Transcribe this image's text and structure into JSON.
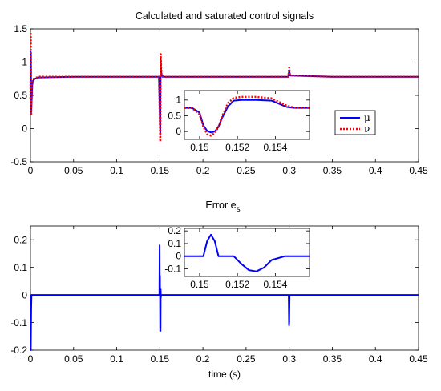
{
  "colors": {
    "mu": "#0000ff",
    "nu": "#ff0000",
    "error": "#0000ff",
    "axes": "#000000"
  },
  "chart_data": [
    {
      "type": "line",
      "title": "Calculated and saturated control signals",
      "xlabel": "",
      "ylabel": "",
      "xlim": [
        0,
        0.45
      ],
      "ylim": [
        -0.5,
        1.5
      ],
      "x_ticks": [
        0,
        0.05,
        0.1,
        0.15,
        0.2,
        0.25,
        0.3,
        0.35,
        0.4,
        0.45
      ],
      "x_tick_labels": [
        "0",
        "0.05",
        "0.1",
        "0.15",
        "0.2",
        "0.25",
        "0.3",
        "0.35",
        "0.4",
        "0.45"
      ],
      "y_ticks": [
        -0.5,
        0,
        0.5,
        1,
        1.5
      ],
      "y_tick_labels": [
        "-0.5",
        "0",
        "0.5",
        "1",
        "1.5"
      ],
      "legend": {
        "placement": "right, below inset",
        "entries": [
          "μ",
          "ν"
        ]
      },
      "series": [
        {
          "name": "μ",
          "color": "#0000ff",
          "style": "solid",
          "x": [
            0,
            0.0005,
            0.0008,
            0.0012,
            0.002,
            0.003,
            0.005,
            0.01,
            0.05,
            0.1,
            0.149,
            0.1505,
            0.1507,
            0.151,
            0.1515,
            0.152,
            0.153,
            0.155,
            0.2,
            0.25,
            0.299,
            0.3,
            0.301,
            0.35,
            0.4,
            0.45
          ],
          "y": [
            0.25,
            1.15,
            0.25,
            0.35,
            0.65,
            0.72,
            0.75,
            0.77,
            0.78,
            0.78,
            0.78,
            -0.1,
            0.3,
            1.05,
            0.9,
            0.8,
            0.78,
            0.78,
            0.78,
            0.78,
            0.78,
            0.88,
            0.8,
            0.78,
            0.78,
            0.78
          ]
        },
        {
          "name": "ν",
          "color": "#ff0000",
          "style": "dotted",
          "x": [
            0,
            0.0004,
            0.0008,
            0.0012,
            0.002,
            0.003,
            0.005,
            0.01,
            0.05,
            0.1,
            0.149,
            0.1505,
            0.1507,
            0.151,
            0.1515,
            0.152,
            0.153,
            0.155,
            0.2,
            0.25,
            0.299,
            0.3,
            0.301,
            0.35,
            0.4,
            0.45
          ],
          "y": [
            0.45,
            1.45,
            0.2,
            0.4,
            0.68,
            0.74,
            0.76,
            0.78,
            0.78,
            0.78,
            0.78,
            -0.2,
            0.3,
            1.12,
            0.95,
            0.82,
            0.79,
            0.78,
            0.78,
            0.78,
            0.78,
            0.92,
            0.8,
            0.78,
            0.78,
            0.78
          ]
        }
      ],
      "inset": {
        "xlim": [
          0.1492,
          0.1558
        ],
        "ylim": [
          -0.25,
          1.3
        ],
        "x_ticks": [
          0.15,
          0.152,
          0.154
        ],
        "x_tick_labels": [
          "0.15",
          "0.152",
          "0.154"
        ],
        "y_ticks": [
          0,
          0.5,
          1
        ],
        "y_tick_labels": [
          "0",
          "0.5",
          "1"
        ],
        "series": [
          {
            "name": "μ",
            "x": [
              0.1492,
              0.1496,
              0.15,
              0.1502,
              0.1504,
              0.1506,
              0.1508,
              0.151,
              0.1512,
              0.1515,
              0.1518,
              0.1522,
              0.153,
              0.1538,
              0.1546,
              0.155,
              0.1558
            ],
            "y": [
              0.75,
              0.75,
              0.6,
              0.2,
              0.02,
              -0.03,
              0.0,
              0.15,
              0.45,
              0.8,
              0.98,
              1.0,
              1.0,
              0.98,
              0.78,
              0.75,
              0.75
            ]
          },
          {
            "name": "ν",
            "x": [
              0.1492,
              0.1496,
              0.15,
              0.1502,
              0.1504,
              0.1506,
              0.1508,
              0.151,
              0.1512,
              0.1515,
              0.1518,
              0.1522,
              0.153,
              0.1538,
              0.1546,
              0.155,
              0.1558
            ],
            "y": [
              0.75,
              0.75,
              0.55,
              0.15,
              -0.08,
              -0.13,
              -0.05,
              0.15,
              0.5,
              0.9,
              1.07,
              1.1,
              1.1,
              1.05,
              0.82,
              0.76,
              0.75
            ]
          }
        ]
      }
    },
    {
      "type": "line",
      "title": "Error e",
      "title_subscript": "s",
      "xlabel": "time (s)",
      "ylabel": "",
      "xlim": [
        0,
        0.45
      ],
      "ylim": [
        -0.2,
        0.25
      ],
      "x_ticks": [
        0,
        0.05,
        0.1,
        0.15,
        0.2,
        0.25,
        0.3,
        0.35,
        0.4,
        0.45
      ],
      "x_tick_labels": [
        "0",
        "0.05",
        "0.1",
        "0.15",
        "0.2",
        "0.25",
        "0.3",
        "0.35",
        "0.4",
        "0.45"
      ],
      "y_ticks": [
        -0.2,
        -0.1,
        0,
        0.1,
        0.2
      ],
      "y_tick_labels": [
        "-0.2",
        "-0.1",
        "0",
        "0.1",
        "0.2"
      ],
      "series": [
        {
          "name": "",
          "color": "#0000ff",
          "style": "solid",
          "x": [
            0,
            0.0004,
            0.0008,
            0.0012,
            0.1495,
            0.1498,
            0.15,
            0.1502,
            0.1504,
            0.1506,
            0.1508,
            0.151,
            0.1512,
            0.1515,
            0.2995,
            0.2998,
            0.3,
            0.3002,
            0.3005,
            0.45
          ],
          "y": [
            0,
            -0.2,
            -0.05,
            0,
            0,
            0.18,
            0.0,
            0.07,
            -0.13,
            -0.02,
            -0.13,
            0.02,
            -0.01,
            0,
            0,
            -0.11,
            -0.1,
            -0.05,
            0,
            0
          ]
        }
      ],
      "inset": {
        "xlim": [
          0.1492,
          0.1558
        ],
        "ylim": [
          -0.16,
          0.22
        ],
        "x_ticks": [
          0.15,
          0.152,
          0.154
        ],
        "x_tick_labels": [
          "0.15",
          "0.152",
          "0.154"
        ],
        "y_ticks": [
          -0.1,
          0,
          0.1,
          0.2
        ],
        "y_tick_labels": [
          "-0.1",
          "0",
          "0.1",
          "0.2"
        ],
        "series": [
          {
            "name": "",
            "x": [
              0.1492,
              0.1502,
              0.1504,
              0.1506,
              0.1508,
              0.151,
              0.1512,
              0.1518,
              0.1522,
              0.1526,
              0.153,
              0.1534,
              0.1538,
              0.1545,
              0.1558
            ],
            "y": [
              0,
              0,
              0.12,
              0.17,
              0.12,
              0,
              0,
              0,
              -0.06,
              -0.11,
              -0.12,
              -0.09,
              -0.03,
              0,
              0
            ]
          }
        ]
      }
    }
  ]
}
